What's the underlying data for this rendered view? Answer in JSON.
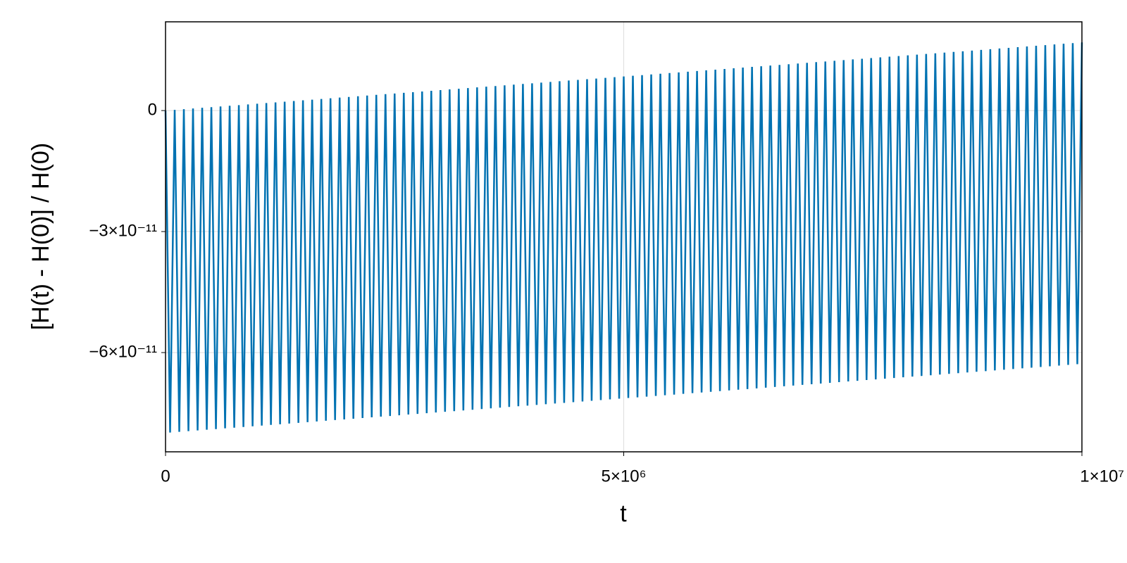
{
  "chart_data": {
    "type": "line",
    "x_label": "t",
    "y_label": "[H(t) - H(0)] / H(0)",
    "xlim": [
      0,
      10000000
    ],
    "ylim": [
      -8.46e-11,
      2.2e-11
    ],
    "xticks": [
      0,
      {
        "value": 5000000,
        "label": "5×10⁶"
      },
      {
        "value": 10000000,
        "label": "1×10⁷"
      }
    ],
    "yticks": [
      0,
      {
        "value": -3e-11,
        "label": "−3×10⁻¹¹"
      },
      {
        "value": -6e-11,
        "label": "−6×10⁻¹¹"
      }
    ],
    "grid": true,
    "x": [
      0,
      50000,
      100000,
      150000,
      200000,
      250000,
      300000,
      350000,
      400000,
      450000,
      500000,
      550000,
      600000,
      650000,
      700000,
      750000,
      800000,
      850000,
      900000,
      950000,
      1000000,
      1050000,
      1100000,
      1150000,
      1200000,
      1250000,
      1300000,
      1350000,
      1400000,
      1450000,
      1500000,
      1550000,
      1600000,
      1650000,
      1700000,
      1750000,
      1800000,
      1850000,
      1900000,
      1950000,
      2000000,
      2050000,
      2100000,
      2150000,
      2200000,
      2250000,
      2300000,
      2350000,
      2400000,
      2450000,
      2500000,
      2550000,
      2600000,
      2650000,
      2700000,
      2750000,
      2800000,
      2850000,
      2900000,
      2950000,
      3000000,
      3050000,
      3100000,
      3150000,
      3200000,
      3250000,
      3300000,
      3350000,
      3400000,
      3450000,
      3500000,
      3550000,
      3600000,
      3650000,
      3700000,
      3750000,
      3800000,
      3850000,
      3900000,
      3950000,
      4000000,
      4050000,
      4100000,
      4150000,
      4200000,
      4250000,
      4300000,
      4350000,
      4400000,
      4450000,
      4500000,
      4550000,
      4600000,
      4650000,
      4700000,
      4750000,
      4800000,
      4850000,
      4900000,
      4950000,
      5000000,
      5050000,
      5100000,
      5150000,
      5200000,
      5250000,
      5300000,
      5350000,
      5400000,
      5450000,
      5500000,
      5550000,
      5600000,
      5650000,
      5700000,
      5750000,
      5800000,
      5850000,
      5900000,
      5950000,
      6000000,
      6050000,
      6100000,
      6150000,
      6200000,
      6250000,
      6300000,
      6350000,
      6400000,
      6450000,
      6500000,
      6550000,
      6600000,
      6650000,
      6700000,
      6750000,
      6800000,
      6850000,
      6900000,
      6950000,
      7000000,
      7050000,
      7100000,
      7150000,
      7200000,
      7250000,
      7300000,
      7350000,
      7400000,
      7450000,
      7500000,
      7550000,
      7600000,
      7650000,
      7700000,
      7750000,
      7800000,
      7850000,
      7900000,
      7950000,
      8000000,
      8050000,
      8100000,
      8150000,
      8200000,
      8250000,
      8300000,
      8350000,
      8400000,
      8450000,
      8500000,
      8550000,
      8600000,
      8650000,
      8700000,
      8750000,
      8800000,
      8850000,
      8900000,
      8950000,
      9000000,
      9050000,
      9100000,
      9150000,
      9200000,
      9250000,
      9300000,
      9350000,
      9400000,
      9450000,
      9500000,
      9550000,
      9600000,
      9650000,
      9700000,
      9750000,
      9800000,
      9850000,
      9900000,
      9950000,
      10000000
    ],
    "series": [
      {
        "color": "#0072b2",
        "values": [
          0,
          -7.981e-11,
          1.7e-13,
          -7.964e-11,
          3.4e-13,
          -7.947e-11,
          5.1e-13,
          -7.93e-11,
          6.8e-13,
          -7.913e-11,
          8.5e-13,
          -7.896e-11,
          1.01e-12,
          -7.878e-11,
          1.18e-12,
          -7.861e-11,
          1.35e-12,
          -7.844e-11,
          1.52e-12,
          -7.827e-11,
          1.69e-12,
          -7.81e-11,
          1.86e-12,
          -7.793e-11,
          2.03e-12,
          -7.776e-11,
          2.2e-12,
          -7.759e-11,
          2.37e-12,
          -7.742e-11,
          2.54e-12,
          -7.725e-11,
          2.7e-12,
          -7.707e-11,
          2.87e-12,
          -7.69e-11,
          3.04e-12,
          -7.673e-11,
          3.21e-12,
          -7.656e-11,
          3.38e-12,
          -7.639e-11,
          3.55e-12,
          -7.622e-11,
          3.72e-12,
          -7.605e-11,
          3.89e-12,
          -7.588e-11,
          4.06e-12,
          -7.571e-11,
          4.23e-12,
          -7.554e-11,
          4.39e-12,
          -7.536e-11,
          4.56e-12,
          -7.519e-11,
          4.73e-12,
          -7.502e-11,
          4.9e-12,
          -7.485e-11,
          5.07e-12,
          -7.468e-11,
          5.24e-12,
          -7.451e-11,
          5.41e-12,
          -7.434e-11,
          5.58e-12,
          -7.417e-11,
          5.75e-12,
          -7.4e-11,
          5.92e-12,
          -7.383e-11,
          6.08e-12,
          -7.365e-11,
          6.25e-12,
          -7.348e-11,
          6.42e-12,
          -7.331e-11,
          6.59e-12,
          -7.314e-11,
          6.76e-12,
          -7.297e-11,
          6.93e-12,
          -7.28e-11,
          7.1e-12,
          -7.263e-11,
          7.27e-12,
          -7.246e-11,
          7.44e-12,
          -7.229e-11,
          7.61e-12,
          -7.212e-11,
          7.77e-12,
          -7.194e-11,
          7.94e-12,
          -7.177e-11,
          8.11e-12,
          -7.16e-11,
          8.28e-12,
          -7.143e-11,
          8.45e-12,
          -7.126e-11,
          8.62e-12,
          -7.109e-11,
          8.79e-12,
          -7.092e-11,
          8.96e-12,
          -7.075e-11,
          9.13e-12,
          -7.058e-11,
          9.3e-12,
          -7.041e-11,
          9.46e-12,
          -7.023e-11,
          9.63e-12,
          -7.006e-11,
          9.8e-12,
          -6.989e-11,
          9.97e-12,
          -6.972e-11,
          1.014e-11,
          -6.955e-11,
          1.031e-11,
          -6.938e-11,
          1.048e-11,
          -6.921e-11,
          1.065e-11,
          -6.904e-11,
          1.082e-11,
          -6.887e-11,
          1.099e-11,
          -6.87e-11,
          1.115e-11,
          -6.852e-11,
          1.132e-11,
          -6.835e-11,
          1.149e-11,
          -6.818e-11,
          1.166e-11,
          -6.801e-11,
          1.183e-11,
          -6.784e-11,
          1.2e-11,
          -6.767e-11,
          1.217e-11,
          -6.75e-11,
          1.234e-11,
          -6.733e-11,
          1.251e-11,
          -6.716e-11,
          1.268e-11,
          -6.699e-11,
          1.284e-11,
          -6.681e-11,
          1.301e-11,
          -6.664e-11,
          1.318e-11,
          -6.647e-11,
          1.335e-11,
          -6.63e-11,
          1.352e-11,
          -6.613e-11,
          1.369e-11,
          -6.596e-11,
          1.386e-11,
          -6.579e-11,
          1.403e-11,
          -6.562e-11,
          1.42e-11,
          -6.545e-11,
          1.437e-11,
          -6.528e-11,
          1.453e-11,
          -6.51e-11,
          1.47e-11,
          -6.493e-11,
          1.487e-11,
          -6.476e-11,
          1.504e-11,
          -6.459e-11,
          1.521e-11,
          -6.442e-11,
          1.538e-11,
          -6.425e-11,
          1.555e-11,
          -6.408e-11,
          1.572e-11,
          -6.391e-11,
          1.589e-11,
          -6.374e-11,
          1.606e-11,
          -6.357e-11,
          1.622e-11,
          -6.339e-11,
          1.639e-11,
          -6.322e-11,
          1.656e-11,
          -6.305e-11,
          1.673e-11,
          -6.288e-11,
          1.69e-11
        ]
      }
    ]
  }
}
